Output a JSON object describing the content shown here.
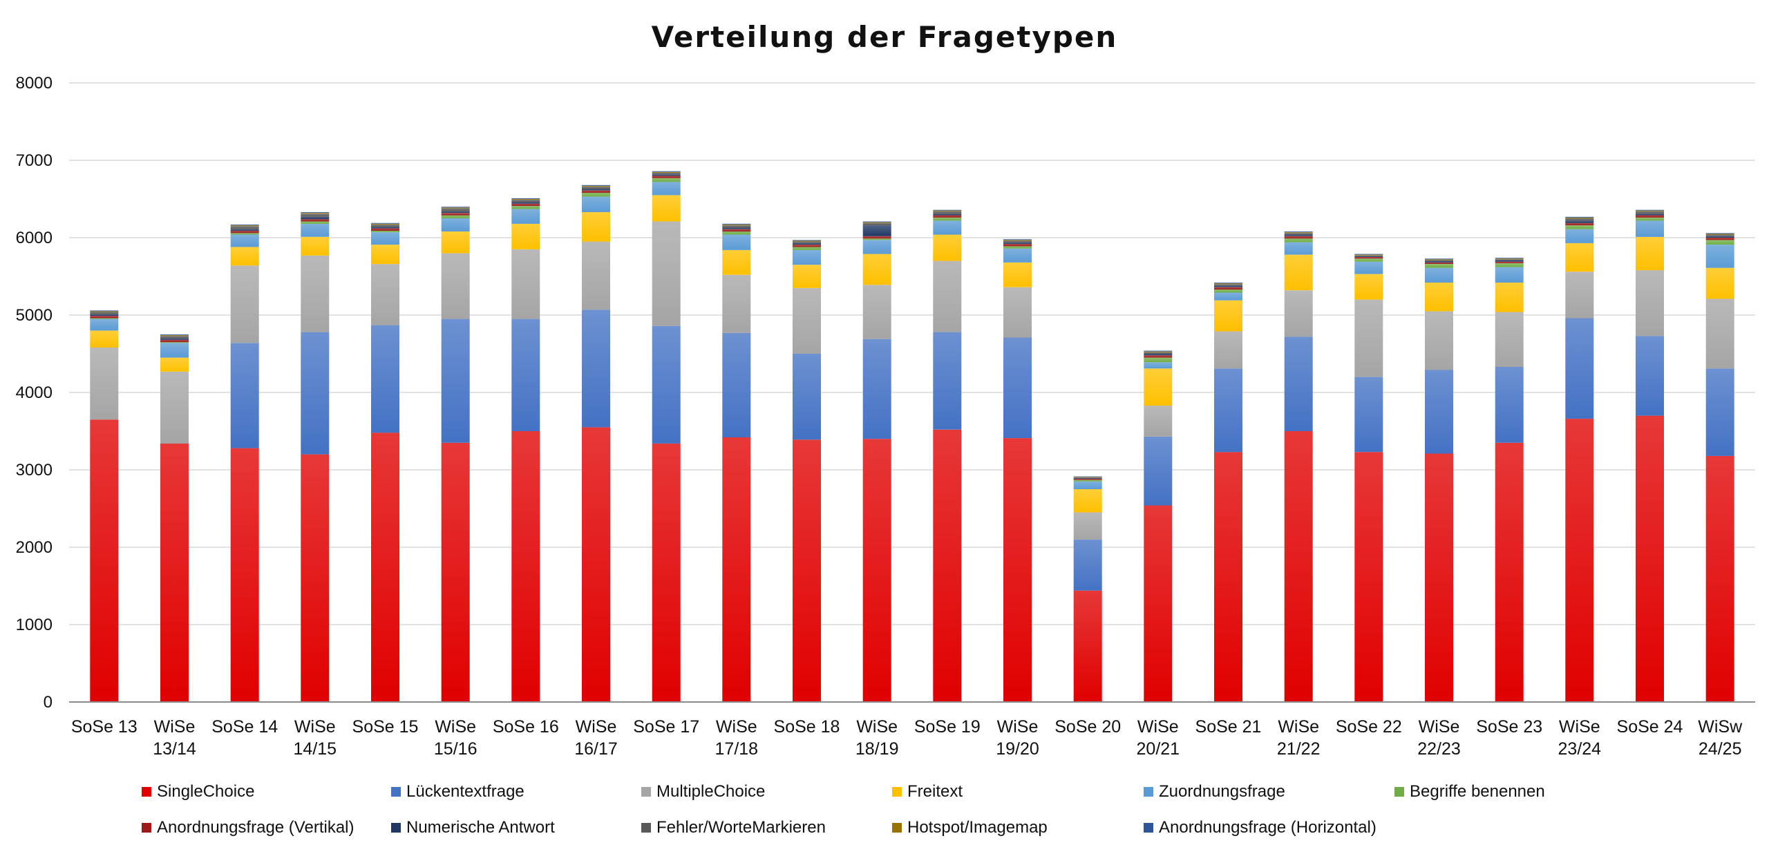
{
  "chart_data": {
    "type": "bar",
    "stacked": true,
    "title": "Verteilung der Fragetypen",
    "xlabel": "",
    "ylabel": "",
    "ylim": [
      0,
      8000
    ],
    "yticks": [
      0,
      1000,
      2000,
      3000,
      4000,
      5000,
      6000,
      7000,
      8000
    ],
    "grid": true,
    "legend_position": "bottom",
    "categories": [
      [
        "SoSe 13"
      ],
      [
        "WiSe",
        "13/14"
      ],
      [
        "SoSe 14"
      ],
      [
        "WiSe",
        "14/15"
      ],
      [
        "SoSe 15"
      ],
      [
        "WiSe",
        "15/16"
      ],
      [
        "SoSe 16"
      ],
      [
        "WiSe",
        "16/17"
      ],
      [
        "SoSe 17"
      ],
      [
        "WiSe",
        "17/18"
      ],
      [
        "SoSe 18"
      ],
      [
        "WiSe",
        "18/19"
      ],
      [
        "SoSe 19"
      ],
      [
        "WiSe",
        "19/20"
      ],
      [
        "SoSe 20"
      ],
      [
        "WiSe",
        "20/21"
      ],
      [
        "SoSe 21"
      ],
      [
        "WiSe",
        "21/22"
      ],
      [
        "SoSe 22"
      ],
      [
        "WiSe",
        "22/23"
      ],
      [
        "SoSe 23"
      ],
      [
        "WiSe",
        "23/24"
      ],
      [
        "SoSe 24"
      ],
      [
        "WiSw",
        "24/25"
      ]
    ],
    "series": [
      {
        "name": "SingleChoice",
        "color": "#e00000",
        "values": [
          3650,
          3340,
          3280,
          3200,
          3480,
          3350,
          3500,
          3550,
          3340,
          3420,
          3390,
          3400,
          3520,
          3410,
          1440,
          2540,
          3230,
          3500,
          3230,
          3210,
          3350,
          3660,
          3700,
          3180
        ]
      },
      {
        "name": "Lückentextfrage",
        "color": "#4472c4",
        "values": [
          0,
          0,
          1360,
          1580,
          1390,
          1600,
          1450,
          1520,
          1520,
          1350,
          1110,
          1290,
          1260,
          1300,
          660,
          890,
          1080,
          1220,
          970,
          1080,
          980,
          1300,
          1030,
          1130
        ]
      },
      {
        "name": "MultipleChoice",
        "color": "#a5a5a5",
        "values": [
          930,
          930,
          1000,
          990,
          790,
          850,
          900,
          880,
          1350,
          750,
          850,
          700,
          920,
          650,
          350,
          400,
          480,
          600,
          1000,
          760,
          710,
          600,
          850,
          900
        ]
      },
      {
        "name": "Freitext",
        "color": "#ffc000",
        "values": [
          220,
          180,
          240,
          240,
          250,
          280,
          330,
          380,
          340,
          320,
          300,
          400,
          340,
          320,
          300,
          480,
          400,
          460,
          330,
          370,
          380,
          370,
          430,
          400
        ]
      },
      {
        "name": "Zuordnungsfrage",
        "color": "#5b9bd5",
        "values": [
          150,
          190,
          160,
          170,
          160,
          170,
          190,
          200,
          170,
          200,
          190,
          180,
          180,
          180,
          100,
          80,
          100,
          160,
          160,
          190,
          200,
          180,
          210,
          300
        ]
      },
      {
        "name": "Begriffe benennen",
        "color": "#70ad47",
        "values": [
          10,
          10,
          20,
          30,
          20,
          40,
          40,
          50,
          50,
          40,
          40,
          20,
          40,
          30,
          20,
          60,
          40,
          50,
          40,
          50,
          50,
          50,
          40,
          60
        ]
      },
      {
        "name": "Anordnungsfrage (Vertikal)",
        "color": "#9e1a1a",
        "values": [
          30,
          30,
          30,
          30,
          30,
          30,
          30,
          30,
          30,
          30,
          30,
          30,
          30,
          30,
          15,
          30,
          30,
          30,
          20,
          20,
          20,
          30,
          30,
          30
        ]
      },
      {
        "name": "Numerische Antwort",
        "color": "#1f3864",
        "values": [
          20,
          20,
          20,
          30,
          20,
          20,
          20,
          20,
          20,
          20,
          20,
          140,
          20,
          20,
          10,
          20,
          20,
          20,
          10,
          20,
          20,
          30,
          20,
          20
        ]
      },
      {
        "name": "Fehler/WorteMarkieren",
        "color": "#595959",
        "values": [
          30,
          30,
          40,
          40,
          30,
          40,
          30,
          30,
          20,
          30,
          20,
          30,
          30,
          20,
          10,
          20,
          20,
          20,
          10,
          10,
          10,
          30,
          30,
          20
        ]
      },
      {
        "name": "Hotspot/Imagemap",
        "color": "#997300",
        "values": [
          10,
          10,
          10,
          10,
          10,
          10,
          10,
          10,
          10,
          10,
          10,
          10,
          10,
          10,
          5,
          10,
          10,
          10,
          10,
          10,
          10,
          10,
          10,
          10
        ]
      },
      {
        "name": "Anordnungsfrage (Horizontal)",
        "color": "#2e5597",
        "values": [
          10,
          10,
          10,
          10,
          10,
          10,
          10,
          10,
          10,
          10,
          10,
          10,
          10,
          10,
          5,
          10,
          10,
          10,
          10,
          10,
          10,
          10,
          10,
          10
        ]
      }
    ]
  }
}
